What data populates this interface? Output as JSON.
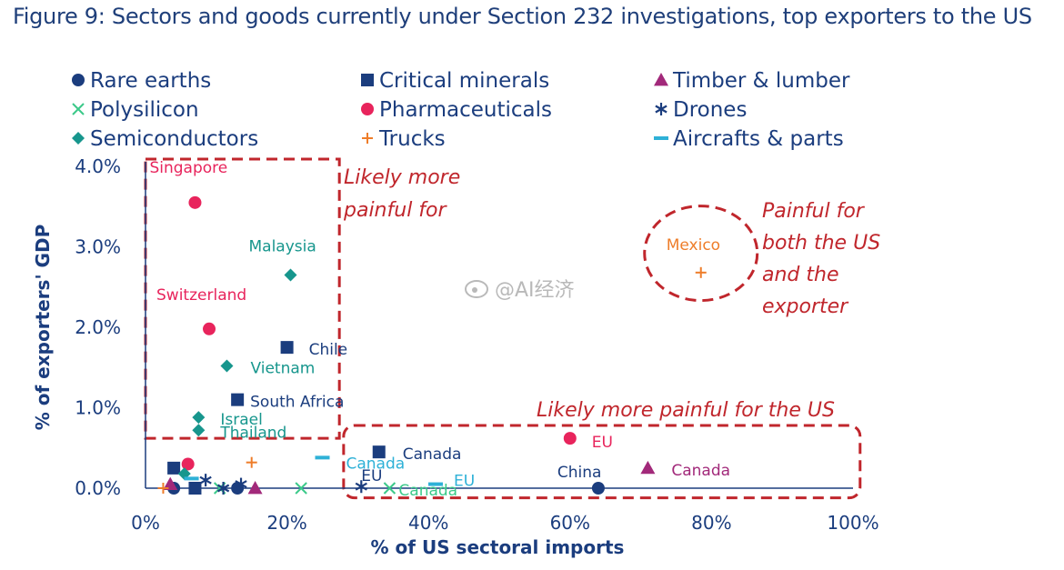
{
  "chart_data": {
    "type": "scatter",
    "title": "Figure 9: Sectors and goods currently under Section 232 investigations, top exporters to the US",
    "xlabel": "% of US sectoral imports",
    "ylabel": "% of exporters' GDP",
    "xlim": [
      0,
      100
    ],
    "ylim": [
      0,
      4
    ],
    "x_ticks": [
      "0%",
      "20%",
      "40%",
      "60%",
      "80%",
      "100%"
    ],
    "y_ticks": [
      "0.0%",
      "1.0%",
      "2.0%",
      "3.0%",
      "4.0%"
    ],
    "grid": false,
    "legend_position": "top",
    "series": [
      {
        "name": "Rare earths",
        "marker": "circle",
        "color": "#1b3d7e",
        "points": [
          {
            "x": 64,
            "y": 0.0,
            "label": "China"
          },
          {
            "x": 13,
            "y": 0.0
          },
          {
            "x": 4,
            "y": 0.0
          }
        ]
      },
      {
        "name": "Critical minerals",
        "marker": "square",
        "color": "#1b3d7e",
        "points": [
          {
            "x": 20,
            "y": 1.75,
            "label": "Chile"
          },
          {
            "x": 13,
            "y": 1.1,
            "label": "South Africa"
          },
          {
            "x": 33,
            "y": 0.45,
            "label": "Canada"
          },
          {
            "x": 4,
            "y": 0.25
          },
          {
            "x": 7,
            "y": 0.0
          }
        ]
      },
      {
        "name": "Timber & lumber",
        "marker": "triangle",
        "color": "#a2297a",
        "points": [
          {
            "x": 71,
            "y": 0.25,
            "label": "Canada"
          },
          {
            "x": 15.5,
            "y": 0.0
          },
          {
            "x": 3.5,
            "y": 0.05
          }
        ]
      },
      {
        "name": "Polysilicon",
        "marker": "x",
        "color": "#3cc98a",
        "points": [
          {
            "x": 22,
            "y": 0.0
          },
          {
            "x": 34.5,
            "y": 0.0,
            "label": "Canada"
          },
          {
            "x": 10.5,
            "y": 0.0
          }
        ]
      },
      {
        "name": "Pharmaceuticals",
        "marker": "circle",
        "color": "#e8245c",
        "points": [
          {
            "x": 7,
            "y": 3.55,
            "label": "Singapore"
          },
          {
            "x": 9,
            "y": 1.98,
            "label": "Switzerland"
          },
          {
            "x": 60,
            "y": 0.62,
            "label": "EU"
          },
          {
            "x": 6,
            "y": 0.3
          }
        ]
      },
      {
        "name": "Drones",
        "marker": "asterisk",
        "color": "#1b3d7e",
        "points": [
          {
            "x": 30.5,
            "y": 0.02,
            "label": "EU"
          },
          {
            "x": 13.5,
            "y": 0.05
          },
          {
            "x": 8.5,
            "y": 0.1
          },
          {
            "x": 11,
            "y": 0.0
          }
        ]
      },
      {
        "name": "Semiconductors",
        "marker": "diamond",
        "color": "#17968d",
        "points": [
          {
            "x": 20.5,
            "y": 2.65,
            "label": "Malaysia"
          },
          {
            "x": 11.5,
            "y": 1.52,
            "label": "Vietnam"
          },
          {
            "x": 7.5,
            "y": 0.88,
            "label": "Israel"
          },
          {
            "x": 7.5,
            "y": 0.72,
            "label": "Thailand"
          },
          {
            "x": 5.5,
            "y": 0.18
          }
        ]
      },
      {
        "name": "Trucks",
        "marker": "plus",
        "color": "#ee7d2a",
        "points": [
          {
            "x": 78.5,
            "y": 2.68,
            "label": "Mexico"
          },
          {
            "x": 15,
            "y": 0.32
          },
          {
            "x": 2.5,
            "y": 0.0
          }
        ]
      },
      {
        "name": "Aircrafts & parts",
        "marker": "dash",
        "color": "#2eb1d7",
        "points": [
          {
            "x": 25,
            "y": 0.38,
            "label": "Canada"
          },
          {
            "x": 41,
            "y": 0.05,
            "label": "EU"
          },
          {
            "x": 6.5,
            "y": 0.12
          }
        ]
      }
    ],
    "annotations": [
      {
        "text": "Likely more",
        "color": "#c0262c"
      },
      {
        "text": "painful for",
        "color": "#c0262c"
      },
      {
        "text": "Painful for",
        "color": "#c0262c"
      },
      {
        "text": "both the US",
        "color": "#c0262c"
      },
      {
        "text": "and the",
        "color": "#c0262c"
      },
      {
        "text": "exporter",
        "color": "#c0262c"
      },
      {
        "text": "Likely more painful for the US",
        "color": "#c0262c"
      }
    ]
  },
  "watermark": "@AI经济"
}
